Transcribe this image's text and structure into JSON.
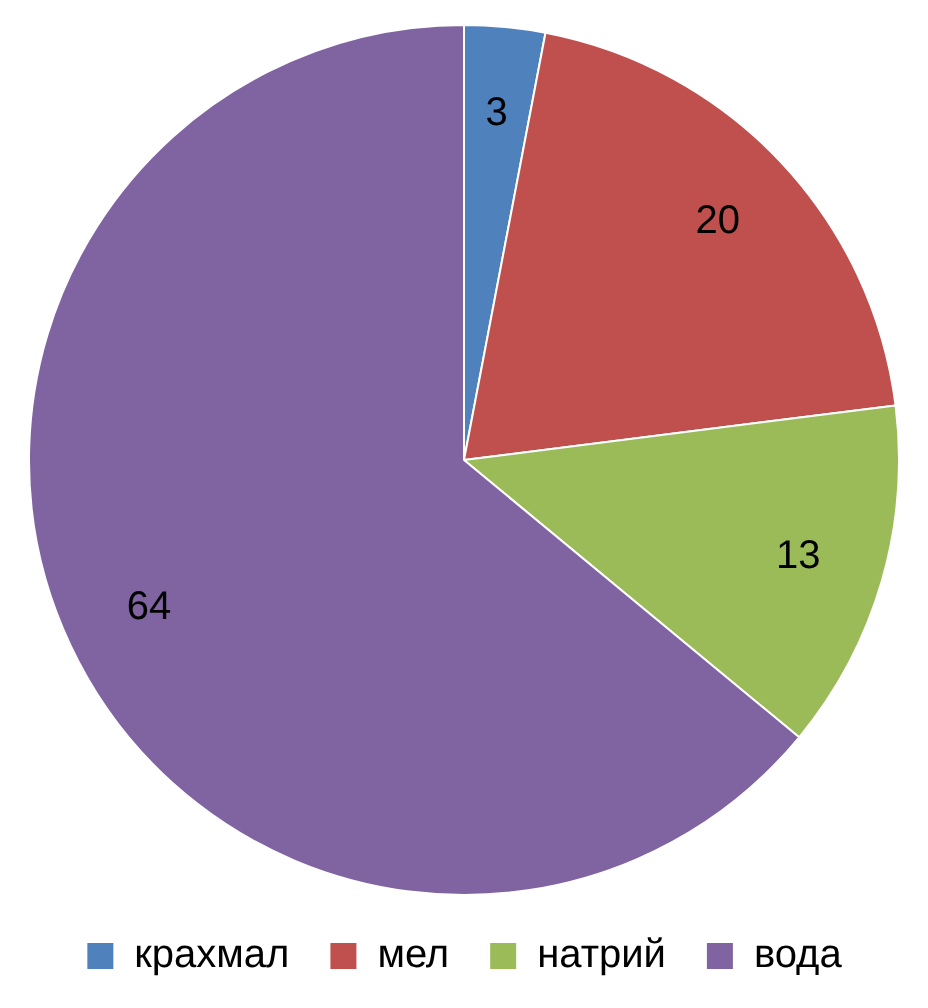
{
  "chart_data": {
    "type": "pie",
    "categories": [
      "крахмал",
      "мел",
      "натрий",
      "вода"
    ],
    "values": [
      3,
      20,
      13,
      64
    ],
    "colors": [
      "#4f81bd",
      "#c0504d",
      "#9bbb59",
      "#8064a2"
    ],
    "data_labels": true,
    "legend": "bottom"
  }
}
